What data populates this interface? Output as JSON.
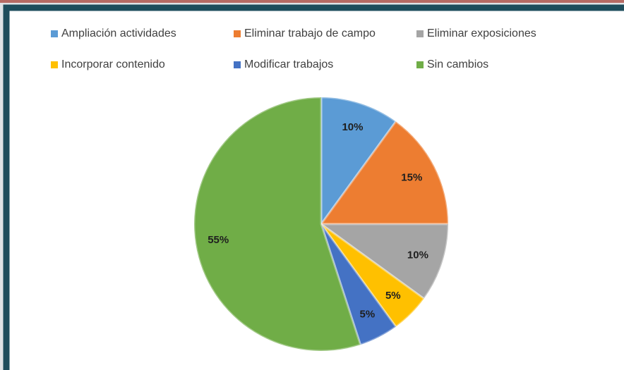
{
  "chart_data": {
    "type": "pie",
    "categories": [
      "Ampliación actividades",
      "Eliminar trabajo de campo",
      "Eliminar exposiciones",
      "Incorporar contenido",
      "Modificar trabajos",
      "Sin  cambios"
    ],
    "values": [
      10,
      15,
      10,
      5,
      5,
      55
    ],
    "value_labels": [
      "10%",
      "15%",
      "10%",
      "5%",
      "5%",
      "55%"
    ],
    "colors": [
      "#5b9bd5",
      "#ed7d31",
      "#a5a5a5",
      "#ffc000",
      "#4472c4",
      "#70ad47"
    ],
    "legend": "top"
  }
}
